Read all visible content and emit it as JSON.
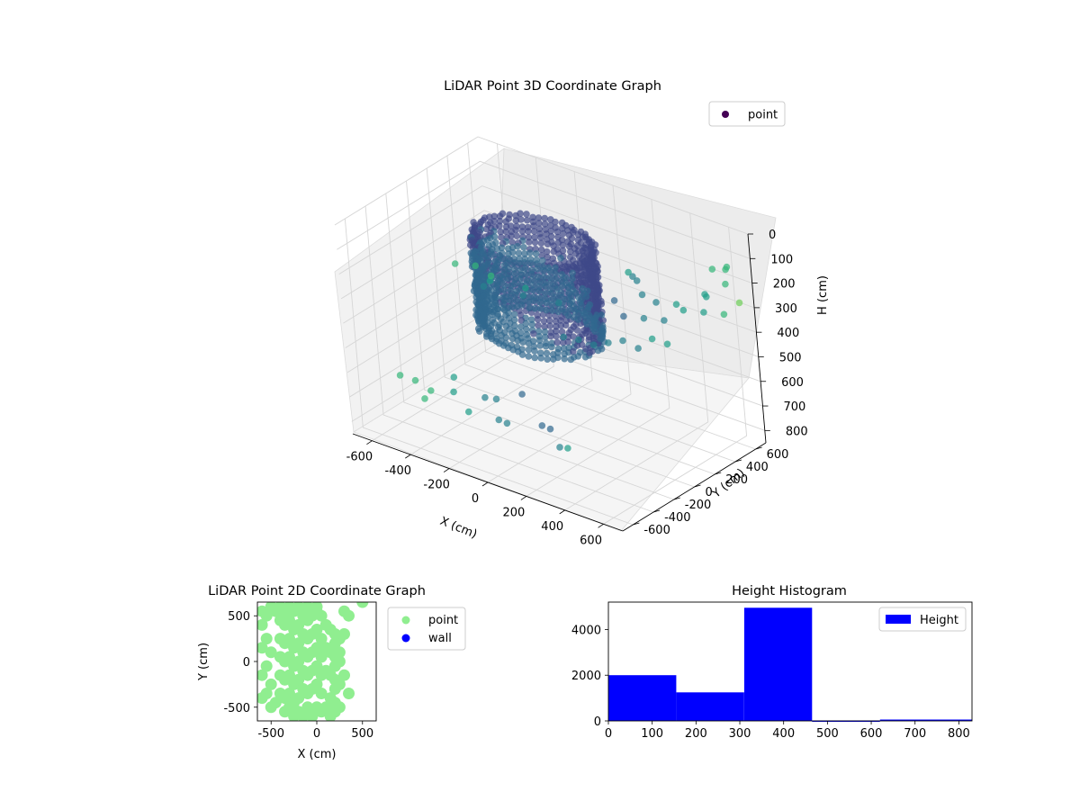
{
  "chart_data": [
    {
      "type": "scatter",
      "projection": "3d",
      "title": "LiDAR Point 3D Coordinate Graph",
      "xlabel": "X (cm)",
      "ylabel": "Y (cm)",
      "zlabel": "H (cm)",
      "xlim": [
        -700,
        700
      ],
      "ylim": [
        -700,
        700
      ],
      "zlim": [
        0,
        850
      ],
      "zinverted": true,
      "xticks": [
        -600,
        -400,
        -200,
        0,
        200,
        400,
        600
      ],
      "yticks": [
        -600,
        -400,
        -200,
        0,
        200,
        400,
        600
      ],
      "zticks": [
        0,
        100,
        200,
        300,
        400,
        500,
        600,
        700,
        800
      ],
      "grid": true,
      "colormap": "viridis",
      "legend": {
        "position": "top-right",
        "entries": [
          {
            "label": "point",
            "color": "#440154"
          }
        ]
      },
      "series": [
        {
          "name": "point",
          "ring_structure": {
            "center": [
              -50,
              0
            ],
            "radius": 280,
            "h_range": [
              60,
              450
            ]
          },
          "sample_points": [
            [
              -650,
              -300,
              700
            ],
            [
              -600,
              -250,
              720
            ],
            [
              -550,
              -200,
              760
            ],
            [
              -500,
              -350,
              740
            ],
            [
              -450,
              -150,
              690
            ],
            [
              -400,
              -250,
              710
            ],
            [
              -350,
              -50,
              770
            ],
            [
              -300,
              -300,
              750
            ],
            [
              -250,
              -120,
              730
            ],
            [
              -200,
              -200,
              780
            ],
            [
              -150,
              -50,
              700
            ],
            [
              -100,
              -300,
              740
            ],
            [
              0,
              -150,
              760
            ],
            [
              100,
              -250,
              720
            ],
            [
              200,
              -350,
              740
            ],
            [
              300,
              -450,
              690
            ],
            [
              -600,
              400,
              420
            ],
            [
              -500,
              350,
              440
            ],
            [
              -550,
              450,
              460
            ],
            [
              -650,
              300,
              400
            ],
            [
              -400,
              500,
              480
            ],
            [
              -300,
              300,
              430
            ],
            [
              -200,
              450,
              470
            ],
            [
              -450,
              200,
              410
            ],
            [
              300,
              -400,
              250
            ],
            [
              350,
              -350,
              260
            ],
            [
              400,
              -300,
              280
            ],
            [
              450,
              -250,
              270
            ],
            [
              500,
              -200,
              260
            ],
            [
              550,
              -150,
              290
            ],
            [
              600,
              -100,
              250
            ],
            [
              650,
              -50,
              270
            ],
            [
              400,
              0,
              240
            ],
            [
              450,
              100,
              260
            ],
            [
              500,
              200,
              280
            ],
            [
              550,
              300,
              250
            ],
            [
              600,
              400,
              270
            ],
            [
              650,
              500,
              290
            ],
            [
              680,
              600,
              260
            ],
            [
              300,
              100,
              230
            ],
            [
              350,
              400,
              300
            ],
            [
              400,
              500,
              320
            ],
            [
              250,
              450,
              310
            ],
            [
              200,
              500,
              280
            ],
            [
              150,
              550,
              290
            ],
            [
              100,
              600,
              300
            ],
            [
              600,
              650,
              150
            ],
            [
              650,
              550,
              120
            ],
            [
              700,
              450,
              140
            ],
            [
              550,
              600,
              160
            ],
            [
              650,
              350,
              180
            ],
            [
              700,
              250,
              130
            ]
          ]
        }
      ]
    },
    {
      "type": "scatter",
      "title": "LiDAR Point 2D Coordinate Graph",
      "xlabel": "X (cm)",
      "ylabel": "Y (cm)",
      "xlim": [
        -650,
        650
      ],
      "ylim": [
        -650,
        650
      ],
      "xticks": [
        -500,
        0,
        500
      ],
      "yticks": [
        -500,
        0,
        500
      ],
      "legend": {
        "position": "outside-right",
        "entries": [
          {
            "label": "point",
            "color": "#90ee90"
          },
          {
            "label": "wall",
            "color": "#0000ff"
          }
        ]
      },
      "series": [
        {
          "name": "point",
          "color": "#90ee90",
          "points": [
            [
              -600,
              550
            ],
            [
              -550,
              500
            ],
            [
              -600,
              400
            ],
            [
              -500,
              600
            ],
            [
              -450,
              550
            ],
            [
              -550,
              250
            ],
            [
              -600,
              150
            ],
            [
              -500,
              100
            ],
            [
              -550,
              -50
            ],
            [
              -600,
              -150
            ],
            [
              -500,
              -250
            ],
            [
              -550,
              -350
            ],
            [
              -600,
              -400
            ],
            [
              -450,
              -450
            ],
            [
              -500,
              -500
            ],
            [
              -400,
              600
            ],
            [
              -350,
              550
            ],
            [
              -300,
              600
            ],
            [
              -250,
              550
            ],
            [
              -200,
              600
            ],
            [
              -400,
              450
            ],
            [
              -350,
              400
            ],
            [
              -300,
              450
            ],
            [
              -250,
              350
            ],
            [
              -200,
              400
            ],
            [
              -400,
              250
            ],
            [
              -350,
              200
            ],
            [
              -300,
              250
            ],
            [
              -250,
              150
            ],
            [
              -200,
              200
            ],
            [
              -400,
              50
            ],
            [
              -350,
              0
            ],
            [
              -300,
              50
            ],
            [
              -250,
              -50
            ],
            [
              -200,
              0
            ],
            [
              -400,
              -150
            ],
            [
              -350,
              -200
            ],
            [
              -300,
              -150
            ],
            [
              -250,
              -250
            ],
            [
              -200,
              -200
            ],
            [
              -400,
              -350
            ],
            [
              -350,
              -400
            ],
            [
              -300,
              -350
            ],
            [
              -250,
              -450
            ],
            [
              -200,
              -400
            ],
            [
              -350,
              -550
            ],
            [
              -300,
              -500
            ],
            [
              -250,
              -600
            ],
            [
              -200,
              -550
            ],
            [
              -150,
              -600
            ],
            [
              -150,
              500
            ],
            [
              -100,
              450
            ],
            [
              -50,
              500
            ],
            [
              0,
              550
            ],
            [
              50,
              500
            ],
            [
              -150,
              300
            ],
            [
              -100,
              250
            ],
            [
              -50,
              300
            ],
            [
              0,
              350
            ],
            [
              50,
              250
            ],
            [
              -150,
              100
            ],
            [
              -100,
              50
            ],
            [
              -50,
              100
            ],
            [
              0,
              150
            ],
            [
              50,
              50
            ],
            [
              -150,
              -100
            ],
            [
              -100,
              -150
            ],
            [
              -50,
              -100
            ],
            [
              0,
              -50
            ],
            [
              50,
              -150
            ],
            [
              -150,
              -300
            ],
            [
              -100,
              -350
            ],
            [
              -50,
              -300
            ],
            [
              0,
              -250
            ],
            [
              50,
              -350
            ],
            [
              -100,
              -500
            ],
            [
              -50,
              -550
            ],
            [
              0,
              -500
            ],
            [
              50,
              -550
            ],
            [
              100,
              -500
            ],
            [
              100,
              400
            ],
            [
              150,
              350
            ],
            [
              200,
              300
            ],
            [
              250,
              250
            ],
            [
              200,
              200
            ],
            [
              100,
              150
            ],
            [
              150,
              100
            ],
            [
              200,
              50
            ],
            [
              250,
              0
            ],
            [
              200,
              -50
            ],
            [
              100,
              -100
            ],
            [
              150,
              -150
            ],
            [
              200,
              -200
            ],
            [
              250,
              -250
            ],
            [
              200,
              -300
            ],
            [
              150,
              -400
            ],
            [
              200,
              -450
            ],
            [
              250,
              -500
            ],
            [
              200,
              -550
            ],
            [
              150,
              -600
            ],
            [
              300,
              550
            ],
            [
              350,
              500
            ],
            [
              300,
              300
            ],
            [
              250,
              100
            ],
            [
              300,
              -150
            ],
            [
              350,
              -350
            ],
            [
              500,
              650
            ],
            [
              -100,
              600
            ],
            [
              0,
              600
            ],
            [
              -50,
              -600
            ]
          ]
        },
        {
          "name": "wall",
          "color": "#0000ff",
          "points": []
        }
      ]
    },
    {
      "type": "bar",
      "subtype": "histogram",
      "title": "Height Histogram",
      "xlabel": "",
      "ylabel": "",
      "xlim": [
        0,
        830
      ],
      "ylim": [
        0,
        5200
      ],
      "xticks": [
        0,
        100,
        200,
        300,
        400,
        500,
        600,
        700,
        800
      ],
      "yticks": [
        0,
        2000,
        4000
      ],
      "legend": {
        "position": "top-right",
        "entries": [
          {
            "label": "Height",
            "color": "#0000ff"
          }
        ]
      },
      "series": [
        {
          "name": "Height",
          "color": "#0000ff",
          "bins": [
            {
              "x0": 0,
              "x1": 155,
              "count": 2000
            },
            {
              "x0": 155,
              "x1": 310,
              "count": 1250
            },
            {
              "x0": 310,
              "x1": 465,
              "count": 4950
            },
            {
              "x0": 465,
              "x1": 620,
              "count": 20
            },
            {
              "x0": 620,
              "x1": 830,
              "count": 60
            }
          ]
        }
      ]
    }
  ]
}
